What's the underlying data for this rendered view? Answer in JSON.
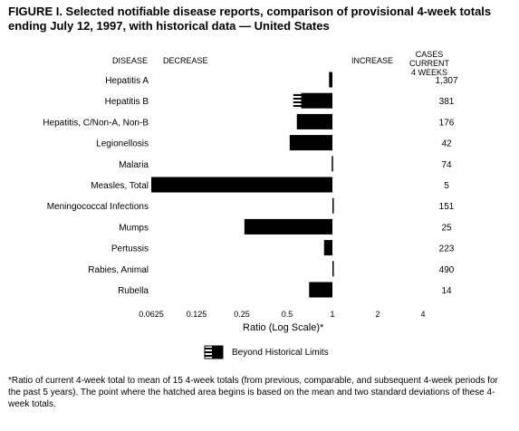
{
  "figure": {
    "title": "FIGURE I. Selected notifiable disease reports, comparison of provisional 4-week totals ending July 12, 1997, with historical data — United States",
    "col_disease": "DISEASE",
    "col_decrease": "DECREASE",
    "col_increase": "INCREASE",
    "col_cases_line1": "CASES CURRENT",
    "col_cases_line2": "4 WEEKS",
    "legend_label": "Beyond Historical Limits",
    "footnote": "*Ratio of current 4-week total to mean of 15 4-week totals (from previous, comparable, and subsequent 4-week periods for the past 5 years). The point where the hatched area begins is based on the mean and two standard deviations of these 4-week totals."
  },
  "chart_data": {
    "type": "bar",
    "orientation": "horizontal",
    "xlabel": "Ratio (Log Scale)*",
    "xscale": "log2",
    "xlim": [
      0.0625,
      4
    ],
    "xticks": [
      "0.0625",
      "0.125",
      "0.25",
      "0.5",
      "1",
      "2",
      "4"
    ],
    "xtick_values": [
      0.0625,
      0.125,
      0.25,
      0.5,
      1,
      2,
      4
    ],
    "baseline": 1,
    "categories": [
      "Hepatitis A",
      "Hepatitis B",
      "Hepatitis, C/Non-A, Non-B",
      "Legionellosis",
      "Malaria",
      "Measles, Total",
      "Meningococcal Infections",
      "Mumps",
      "Pertussis",
      "Rabies, Animal",
      "Rubella"
    ],
    "values": [
      0.95,
      0.55,
      0.58,
      0.52,
      0.99,
      0.0625,
      1.02,
      0.26,
      0.88,
      1.02,
      0.7
    ],
    "cases_current_4_weeks": [
      "1,307",
      "381",
      "176",
      "42",
      "74",
      "5",
      "151",
      "25",
      "223",
      "490",
      "14"
    ],
    "beyond_historical_limits": [
      {
        "category": "Hepatitis B",
        "hatched_from": 0.55,
        "hatched_to": 0.62
      }
    ],
    "bar_color": "#000000"
  }
}
